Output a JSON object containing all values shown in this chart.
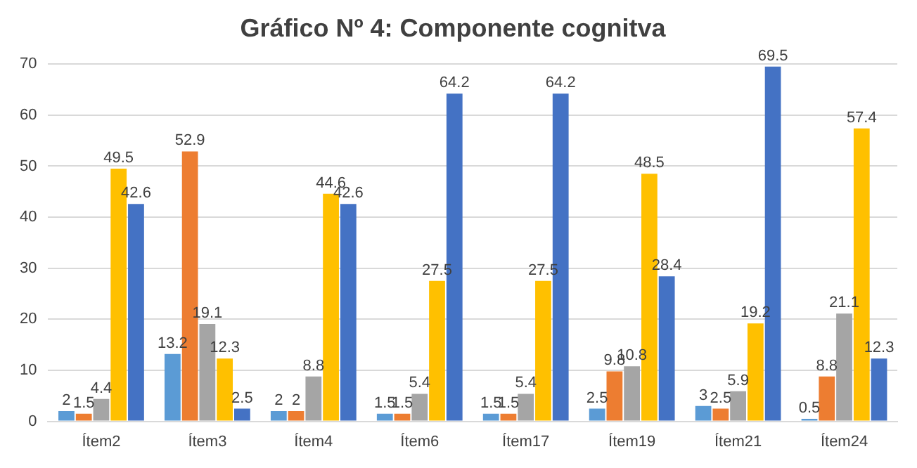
{
  "chart_data": {
    "type": "bar",
    "title": "Gráfico Nº 4: Componente cognitva",
    "categories": [
      "Ítem2",
      "Ítem3",
      "Ítem4",
      "Ítem6",
      "Ítem17",
      "Ítem19",
      "Ítem21",
      "Ítem24"
    ],
    "series": [
      {
        "color": "#5b9bd5",
        "values": [
          2,
          13.2,
          2,
          1.5,
          1.5,
          2.5,
          3,
          0.5
        ]
      },
      {
        "color": "#ed7d31",
        "values": [
          1.5,
          52.9,
          2,
          1.5,
          1.5,
          9.8,
          2.5,
          8.8
        ]
      },
      {
        "color": "#a5a5a5",
        "values": [
          4.4,
          19.1,
          8.8,
          5.4,
          5.4,
          10.8,
          5.9,
          21.1
        ]
      },
      {
        "color": "#ffc000",
        "values": [
          49.5,
          12.3,
          44.6,
          27.5,
          27.5,
          48.5,
          19.2,
          57.4
        ]
      },
      {
        "color": "#4472c4",
        "values": [
          42.6,
          2.5,
          42.6,
          64.2,
          64.2,
          28.4,
          69.5,
          12.3
        ]
      }
    ],
    "ylim": [
      0,
      70
    ],
    "yticks": [
      0,
      10,
      20,
      30,
      40,
      50,
      60,
      70
    ],
    "grid": "y",
    "legend": false,
    "data_labels": true
  }
}
